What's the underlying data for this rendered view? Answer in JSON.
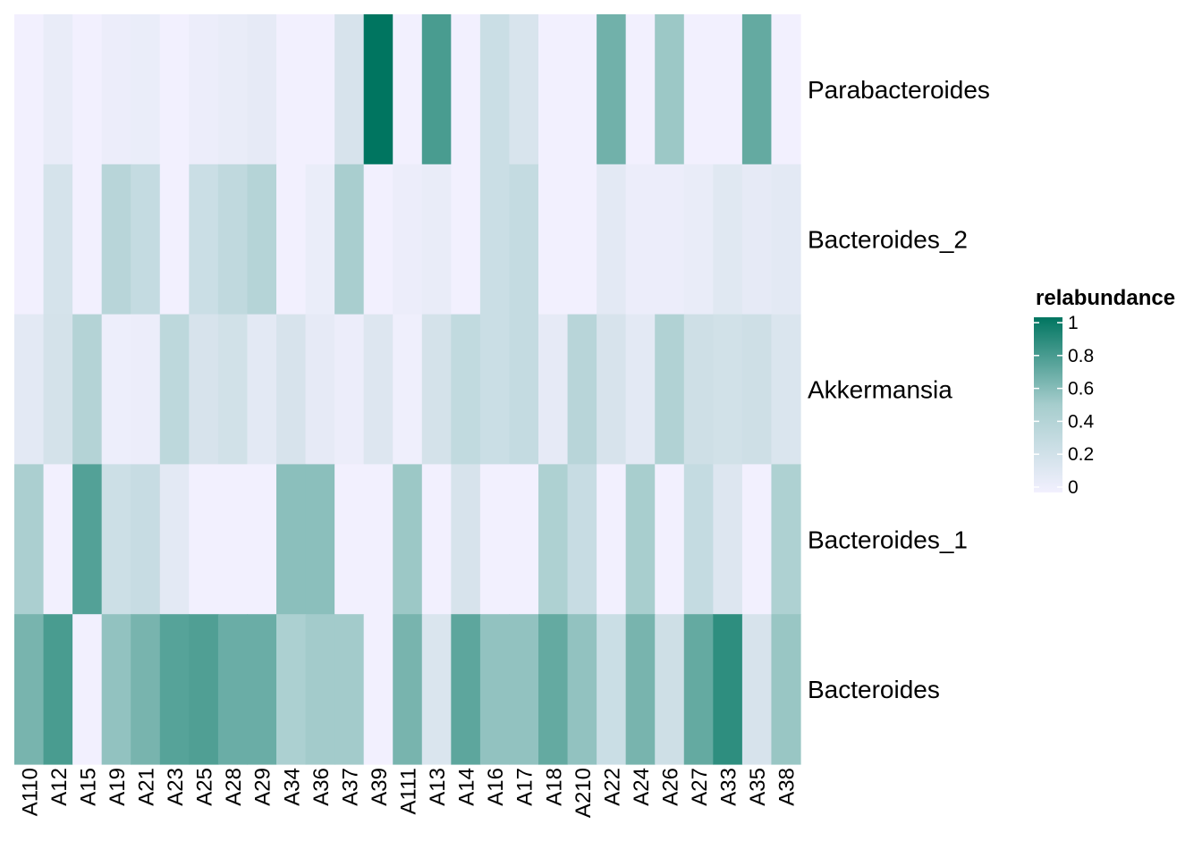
{
  "chart_data": {
    "type": "heatmap",
    "title": "",
    "xlabel": "",
    "ylabel": "",
    "x": [
      "A110",
      "A12",
      "A15",
      "A19",
      "A21",
      "A23",
      "A25",
      "A28",
      "A29",
      "A34",
      "A36",
      "A37",
      "A39",
      "A111",
      "A13",
      "A14",
      "A16",
      "A17",
      "A18",
      "A210",
      "A22",
      "A24",
      "A26",
      "A27",
      "A33",
      "A35",
      "A38"
    ],
    "y": [
      "Parabacteroides",
      "Bacteroides_2",
      "Akkermansia",
      "Bacteroides_1",
      "Bacteroides"
    ],
    "values": [
      [
        0.0,
        0.06,
        0.0,
        0.04,
        0.05,
        0.0,
        0.04,
        0.06,
        0.08,
        0.0,
        0.0,
        0.18,
        1.0,
        0.0,
        0.78,
        0.0,
        0.26,
        0.17,
        0.0,
        0.0,
        0.66,
        0.0,
        0.53,
        0.0,
        0.0,
        0.7,
        0.0
      ],
      [
        0.0,
        0.19,
        0.0,
        0.38,
        0.3,
        0.0,
        0.26,
        0.33,
        0.4,
        0.0,
        0.05,
        0.48,
        0.0,
        0.04,
        0.06,
        0.0,
        0.26,
        0.3,
        0.0,
        0.0,
        0.1,
        0.04,
        0.04,
        0.06,
        0.12,
        0.08,
        0.1
      ],
      [
        0.1,
        0.2,
        0.41,
        0.03,
        0.04,
        0.35,
        0.18,
        0.22,
        0.1,
        0.18,
        0.08,
        0.04,
        0.14,
        0.02,
        0.2,
        0.32,
        0.26,
        0.3,
        0.08,
        0.38,
        0.18,
        0.1,
        0.43,
        0.24,
        0.22,
        0.24,
        0.16
      ],
      [
        0.47,
        0.0,
        0.75,
        0.25,
        0.28,
        0.1,
        0.0,
        0.0,
        0.0,
        0.58,
        0.58,
        0.0,
        0.0,
        0.53,
        0.0,
        0.18,
        0.0,
        0.0,
        0.45,
        0.28,
        0.0,
        0.49,
        0.0,
        0.3,
        0.14,
        0.0,
        0.45
      ],
      [
        0.64,
        0.78,
        0.0,
        0.56,
        0.64,
        0.74,
        0.76,
        0.68,
        0.68,
        0.46,
        0.51,
        0.51,
        0.0,
        0.64,
        0.16,
        0.72,
        0.56,
        0.56,
        0.7,
        0.56,
        0.26,
        0.64,
        0.24,
        0.7,
        0.86,
        0.18,
        0.54
      ]
    ],
    "legend": {
      "title": "relabundance",
      "ticks": [
        "0",
        "0.2",
        "0.4",
        "0.6",
        "0.8",
        "1"
      ],
      "tick_values": [
        0,
        0.2,
        0.4,
        0.6,
        0.8,
        1.0
      ],
      "range": [
        0,
        1.0
      ],
      "low_color": "#f2f0fe",
      "mid_color": "#a6cdcd",
      "high_color": "#007560",
      "placement": "right"
    }
  }
}
